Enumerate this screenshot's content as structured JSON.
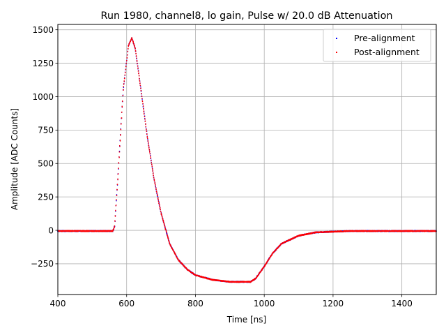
{
  "chart_data": {
    "type": "scatter",
    "title": "Run 1980, channel8, lo gain, Pulse w/ 20.0 dB Attenuation",
    "xlabel": "Time [ns]",
    "ylabel": "Amplitude [ADC Counts]",
    "xlim": [
      400,
      1500
    ],
    "ylim": [
      -480,
      1540
    ],
    "xticks": [
      400,
      600,
      800,
      1000,
      1200,
      1400
    ],
    "xtick_labels": [
      "400",
      "600",
      "800",
      "1000",
      "1200",
      "1400"
    ],
    "yticks": [
      -250,
      0,
      250,
      500,
      750,
      1000,
      1250,
      1500
    ],
    "ytick_labels": [
      "−250",
      "0",
      "250",
      "500",
      "750",
      "1000",
      "1250",
      "1500"
    ],
    "grid": true,
    "legend_position": "top-right",
    "series": [
      {
        "name": "Pre-alignment",
        "color": "#0000ff",
        "x": [
          400,
          560,
          565,
          575,
          590,
          605,
          615,
          625,
          640,
          660,
          680,
          700,
          725,
          750,
          775,
          800,
          850,
          900,
          960,
          975,
          1000,
          1025,
          1050,
          1100,
          1150,
          1200,
          1250,
          1300,
          1400,
          1500
        ],
        "y": [
          -5,
          -5,
          30,
          420,
          1050,
          1380,
          1440,
          1360,
          1080,
          700,
          380,
          130,
          -100,
          -220,
          -290,
          -335,
          -370,
          -385,
          -385,
          -360,
          -270,
          -170,
          -100,
          -40,
          -15,
          -10,
          -5,
          -5,
          -5,
          -5
        ]
      },
      {
        "name": "Post-alignment",
        "color": "#ff0000",
        "x": [
          400,
          560,
          565,
          575,
          590,
          605,
          615,
          625,
          640,
          660,
          680,
          700,
          725,
          750,
          775,
          800,
          850,
          900,
          960,
          975,
          1000,
          1025,
          1050,
          1100,
          1150,
          1200,
          1250,
          1300,
          1400,
          1500
        ],
        "y": [
          -5,
          -5,
          30,
          420,
          1050,
          1380,
          1440,
          1360,
          1080,
          700,
          380,
          130,
          -100,
          -220,
          -290,
          -335,
          -370,
          -385,
          -385,
          -360,
          -270,
          -170,
          -100,
          -40,
          -15,
          -10,
          -5,
          -5,
          -5,
          -5
        ]
      }
    ]
  }
}
